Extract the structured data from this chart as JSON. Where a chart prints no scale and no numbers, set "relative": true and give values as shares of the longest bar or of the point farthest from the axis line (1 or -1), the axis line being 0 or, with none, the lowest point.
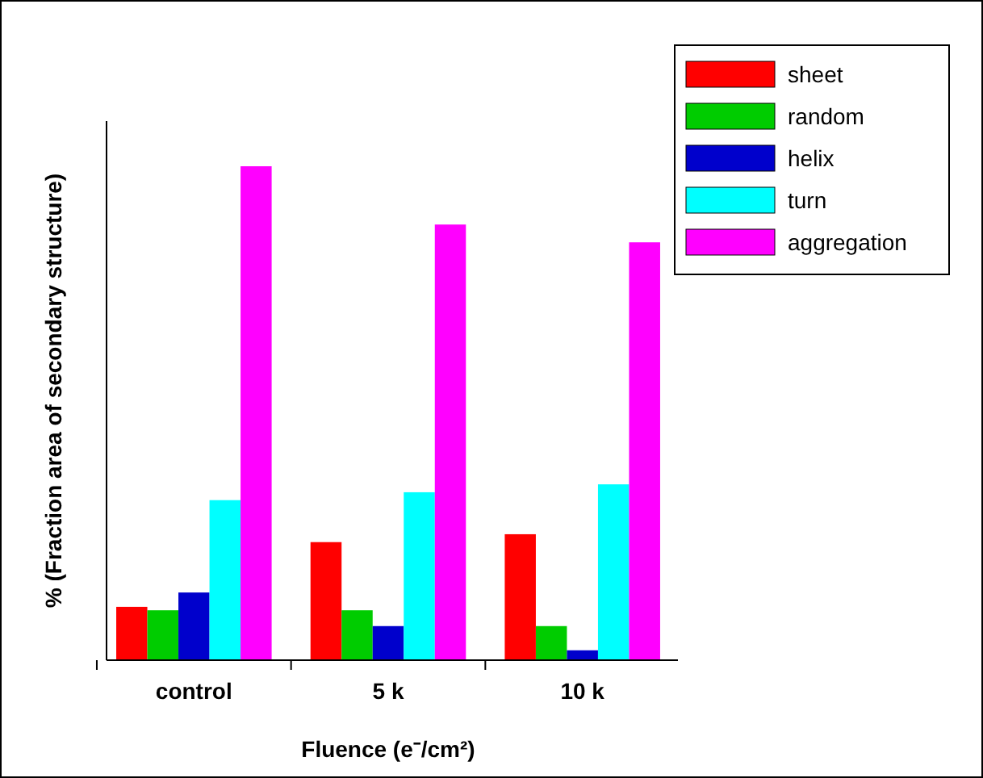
{
  "chart_data": {
    "type": "bar",
    "relative": true,
    "ylabel": "% (Fraction area of secondary structure)",
    "xlabel": "Fluence (e⁻/cm²)",
    "categories": [
      "control",
      "5 k",
      "10 k"
    ],
    "legend": "top right",
    "series": [
      {
        "name": "sheet",
        "color": "#ff0000",
        "values": [
          0.108,
          0.239,
          0.255
        ]
      },
      {
        "name": "random",
        "color": "#00cc00",
        "values": [
          0.101,
          0.101,
          0.069
        ]
      },
      {
        "name": "helix",
        "color": "#0000cc",
        "values": [
          0.137,
          0.069,
          0.02
        ]
      },
      {
        "name": "turn",
        "color": "#00ffff",
        "values": [
          0.324,
          0.34,
          0.356
        ]
      },
      {
        "name": "aggregation",
        "color": "#ff00ff",
        "values": [
          1,
          0.882,
          0.846
        ]
      }
    ]
  }
}
